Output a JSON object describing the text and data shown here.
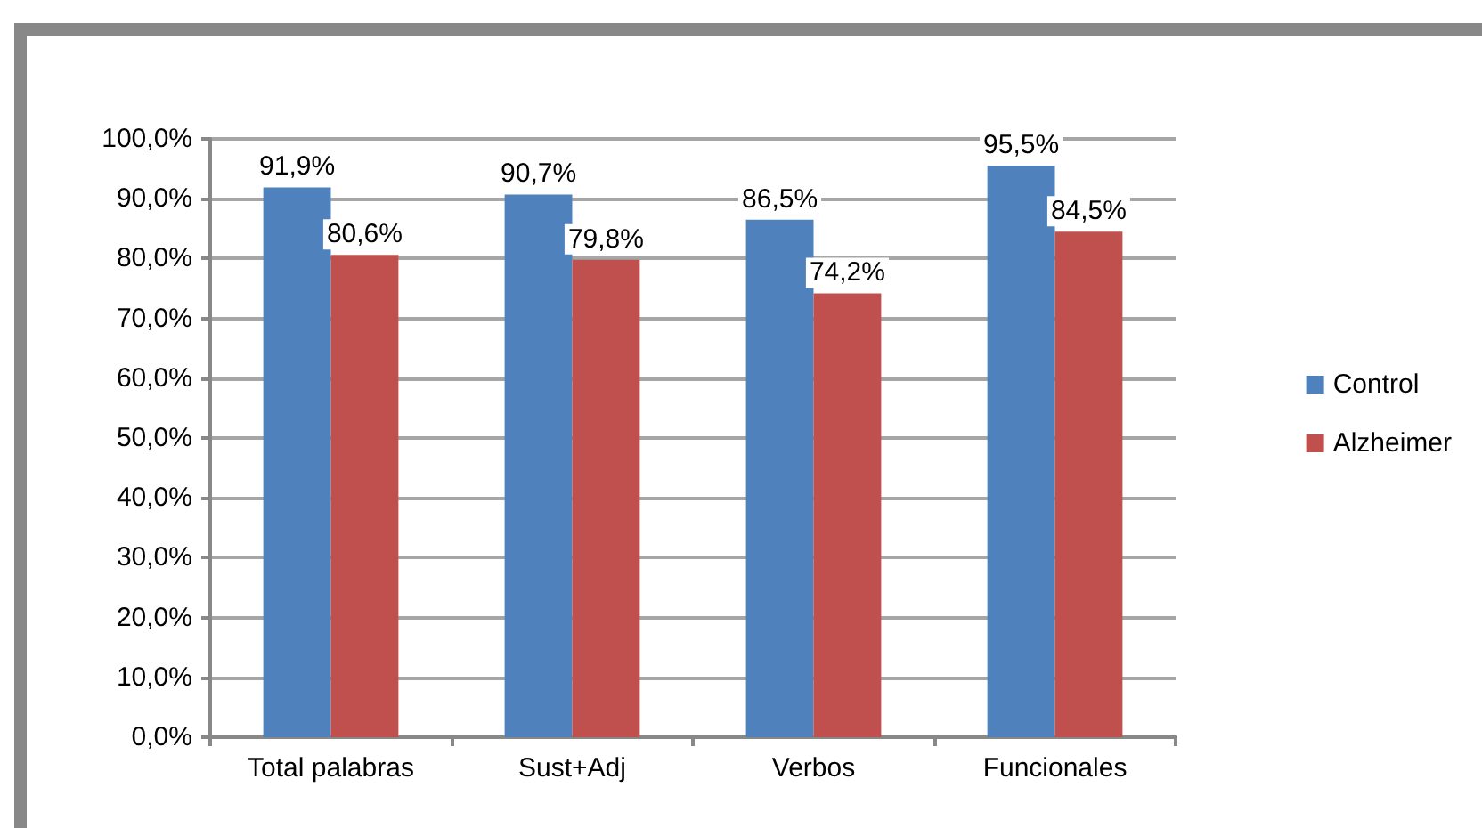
{
  "chart_data": {
    "type": "bar",
    "categories": [
      "Total palabras",
      "Sust+Adj",
      "Verbos",
      "Funcionales"
    ],
    "series": [
      {
        "name": "Control",
        "color": "#4f81bd",
        "values": [
          91.9,
          90.7,
          86.5,
          95.5
        ],
        "value_labels": [
          "91,9%",
          "90,7%",
          "86,5%",
          "95,5%"
        ]
      },
      {
        "name": "Alzheimer",
        "color": "#c0504d",
        "values": [
          80.6,
          79.8,
          74.2,
          84.5
        ],
        "value_labels": [
          "80,6%",
          "79,8%",
          "74,2%",
          "84,5%"
        ]
      }
    ],
    "ylim": [
      0,
      100
    ],
    "yticks": [
      {
        "value": 0,
        "label": "0,0%"
      },
      {
        "value": 10,
        "label": "10,0%"
      },
      {
        "value": 20,
        "label": "20,0%"
      },
      {
        "value": 30,
        "label": "30,0%"
      },
      {
        "value": 40,
        "label": "40,0%"
      },
      {
        "value": 50,
        "label": "50,0%"
      },
      {
        "value": 60,
        "label": "60,0%"
      },
      {
        "value": 70,
        "label": "70,0%"
      },
      {
        "value": 80,
        "label": "80,0%"
      },
      {
        "value": 90,
        "label": "90,0%"
      },
      {
        "value": 100,
        "label": "100,0%"
      }
    ],
    "grid": "y",
    "legend": "right"
  }
}
